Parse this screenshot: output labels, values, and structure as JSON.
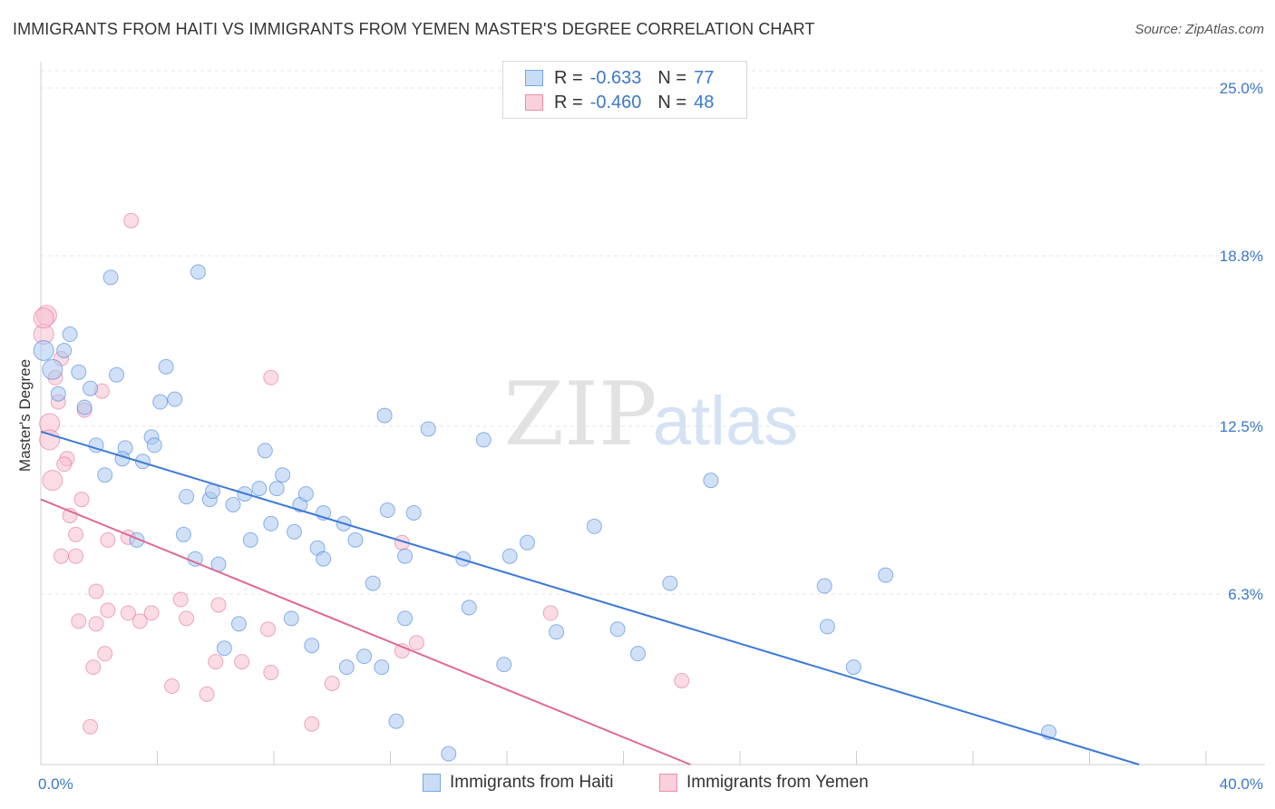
{
  "header": {
    "title": "IMMIGRANTS FROM HAITI VS IMMIGRANTS FROM YEMEN MASTER'S DEGREE CORRELATION CHART",
    "source": "Source: ZipAtlas.com"
  },
  "watermark": {
    "zip": "ZIP",
    "atlas": "atlas"
  },
  "legend": {
    "rows": [
      {
        "r_label": "R =",
        "r_value": "-0.633",
        "n_label": "N =",
        "n_value": "77",
        "color": "#aac8f0",
        "border": "#7aa6e0"
      },
      {
        "r_label": "R =",
        "r_value": "-0.460",
        "n_label": "N =",
        "n_value": "48",
        "color": "#f8c0d0",
        "border": "#e890aa"
      }
    ]
  },
  "chart_data": {
    "type": "scatter",
    "title": "IMMIGRANTS FROM HAITI VS IMMIGRANTS FROM YEMEN MASTER'S DEGREE CORRELATION CHART",
    "xlabel": "",
    "ylabel": "Master's Degree",
    "xlim": [
      0,
      40
    ],
    "ylim": [
      0,
      25
    ],
    "x_tick_labels": [
      "0.0%",
      "40.0%"
    ],
    "y_ticks": [
      6.3,
      12.5,
      18.8,
      25.0
    ],
    "y_tick_labels": [
      "6.3%",
      "12.5%",
      "18.8%",
      "25.0%"
    ],
    "grid": true,
    "legend_position": "bottom-center",
    "series": [
      {
        "name": "Immigrants from Haiti",
        "color": "#3b78d8",
        "fill": "#aac8f0",
        "trend": {
          "x": [
            0,
            37.7
          ],
          "y": [
            12.3,
            0
          ]
        },
        "points": [
          [
            0.1,
            15.3
          ],
          [
            0.4,
            14.6
          ],
          [
            1.0,
            15.9
          ],
          [
            0.8,
            15.3
          ],
          [
            2.4,
            18.0
          ],
          [
            5.4,
            18.2
          ],
          [
            1.3,
            14.5
          ],
          [
            2.6,
            14.4
          ],
          [
            4.3,
            14.7
          ],
          [
            0.6,
            13.7
          ],
          [
            1.7,
            13.9
          ],
          [
            1.5,
            13.2
          ],
          [
            4.1,
            13.4
          ],
          [
            4.6,
            13.5
          ],
          [
            1.9,
            11.8
          ],
          [
            2.9,
            11.7
          ],
          [
            3.8,
            12.1
          ],
          [
            3.9,
            11.8
          ],
          [
            2.8,
            11.3
          ],
          [
            3.5,
            11.2
          ],
          [
            2.2,
            10.7
          ],
          [
            7.7,
            11.6
          ],
          [
            5.0,
            9.9
          ],
          [
            5.8,
            9.8
          ],
          [
            5.9,
            10.1
          ],
          [
            6.6,
            9.6
          ],
          [
            7.0,
            10.0
          ],
          [
            7.5,
            10.2
          ],
          [
            8.1,
            10.2
          ],
          [
            8.3,
            10.7
          ],
          [
            8.9,
            9.6
          ],
          [
            9.1,
            10.0
          ],
          [
            9.7,
            9.3
          ],
          [
            10.4,
            8.9
          ],
          [
            11.8,
            12.9
          ],
          [
            13.3,
            12.4
          ],
          [
            15.2,
            12.0
          ],
          [
            11.9,
            9.4
          ],
          [
            12.8,
            9.3
          ],
          [
            7.9,
            8.9
          ],
          [
            8.7,
            8.6
          ],
          [
            9.5,
            8.0
          ],
          [
            9.7,
            7.6
          ],
          [
            10.8,
            8.3
          ],
          [
            7.2,
            8.3
          ],
          [
            3.3,
            8.3
          ],
          [
            4.9,
            8.5
          ],
          [
            5.3,
            7.6
          ],
          [
            6.1,
            7.4
          ],
          [
            12.5,
            7.7
          ],
          [
            14.5,
            7.6
          ],
          [
            16.1,
            7.7
          ],
          [
            16.7,
            8.2
          ],
          [
            19.0,
            8.8
          ],
          [
            11.4,
            6.7
          ],
          [
            21.6,
            6.7
          ],
          [
            23.0,
            10.5
          ],
          [
            26.9,
            6.6
          ],
          [
            29.0,
            7.0
          ],
          [
            14.7,
            5.8
          ],
          [
            12.5,
            5.4
          ],
          [
            8.6,
            5.4
          ],
          [
            6.8,
            5.2
          ],
          [
            17.7,
            4.9
          ],
          [
            19.8,
            5.0
          ],
          [
            27.0,
            5.1
          ],
          [
            9.3,
            4.4
          ],
          [
            6.3,
            4.3
          ],
          [
            11.1,
            4.0
          ],
          [
            20.5,
            4.1
          ],
          [
            10.5,
            3.6
          ],
          [
            11.7,
            3.6
          ],
          [
            15.9,
            3.7
          ],
          [
            27.9,
            3.6
          ],
          [
            12.2,
            1.6
          ],
          [
            34.6,
            1.2
          ],
          [
            14.0,
            0.4
          ]
        ]
      },
      {
        "name": "Immigrants from Yemen",
        "color": "#e06890",
        "fill": "#f8c0d0",
        "trend": {
          "x": [
            0,
            22.3
          ],
          "y": [
            9.8,
            0
          ]
        },
        "points": [
          [
            0.2,
            16.6
          ],
          [
            0.1,
            15.9
          ],
          [
            0.7,
            15.0
          ],
          [
            3.1,
            20.1
          ],
          [
            7.9,
            14.3
          ],
          [
            0.5,
            14.3
          ],
          [
            0.6,
            13.4
          ],
          [
            1.5,
            13.1
          ],
          [
            2.1,
            13.8
          ],
          [
            0.3,
            12.6
          ],
          [
            0.3,
            12.0
          ],
          [
            0.9,
            11.3
          ],
          [
            0.8,
            11.1
          ],
          [
            0.4,
            10.5
          ],
          [
            1.4,
            9.8
          ],
          [
            1.0,
            9.2
          ],
          [
            1.2,
            8.5
          ],
          [
            2.3,
            8.3
          ],
          [
            3.0,
            8.4
          ],
          [
            12.4,
            8.2
          ],
          [
            0.7,
            7.7
          ],
          [
            1.2,
            7.7
          ],
          [
            1.9,
            6.4
          ],
          [
            4.8,
            6.1
          ],
          [
            2.3,
            5.7
          ],
          [
            3.0,
            5.6
          ],
          [
            3.8,
            5.6
          ],
          [
            6.1,
            5.9
          ],
          [
            17.5,
            5.6
          ],
          [
            1.3,
            5.3
          ],
          [
            1.9,
            5.2
          ],
          [
            3.4,
            5.3
          ],
          [
            5.0,
            5.4
          ],
          [
            7.8,
            5.0
          ],
          [
            12.9,
            4.5
          ],
          [
            2.2,
            4.1
          ],
          [
            12.4,
            4.2
          ],
          [
            1.8,
            3.6
          ],
          [
            6.0,
            3.8
          ],
          [
            6.9,
            3.8
          ],
          [
            7.9,
            3.4
          ],
          [
            4.5,
            2.9
          ],
          [
            5.7,
            2.6
          ],
          [
            10.0,
            3.0
          ],
          [
            22.0,
            3.1
          ],
          [
            9.3,
            1.5
          ],
          [
            1.7,
            1.4
          ],
          [
            0.1,
            16.5
          ]
        ]
      }
    ]
  },
  "bottom_legend": {
    "items": [
      {
        "label": "Immigrants from Haiti",
        "fill": "#c8dcf6",
        "border": "#7aa6e0"
      },
      {
        "label": "Immigrants from Yemen",
        "fill": "#fad0dc",
        "border": "#e890aa"
      }
    ]
  }
}
